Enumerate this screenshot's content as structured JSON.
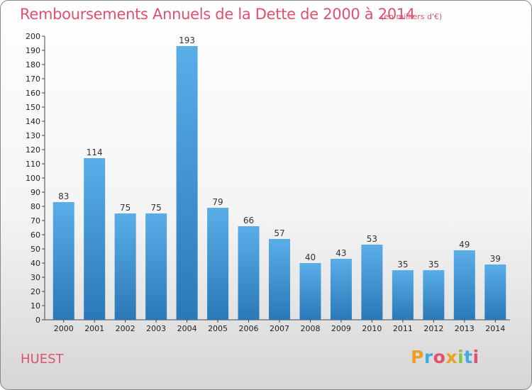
{
  "header": {
    "title": "Remboursements Annuels de la Dette de 2000 à 2014",
    "unit_note": "(en milliers d'€)"
  },
  "footer": {
    "commune": "HUEST",
    "logo_text": "Proxiti",
    "logo_colors": [
      "#f0a020",
      "#3fa9e0",
      "#e0506f",
      "#f0a020",
      "#8cc63f",
      "#3fa9e0",
      "#e0506f"
    ]
  },
  "colors": {
    "bar_top": "#5aaee8",
    "bar_bottom": "#2a78b8",
    "title": "#e0506f"
  },
  "chart_data": {
    "type": "bar",
    "categories": [
      "2000",
      "2001",
      "2002",
      "2003",
      "2004",
      "2005",
      "2006",
      "2007",
      "2008",
      "2009",
      "2010",
      "2011",
      "2012",
      "2013",
      "2014"
    ],
    "values": [
      83,
      114,
      75,
      75,
      193,
      79,
      66,
      57,
      40,
      43,
      53,
      35,
      35,
      49,
      39
    ],
    "title": "Remboursements Annuels de la Dette de 2000 à 2014",
    "xlabel": "",
    "ylabel": "",
    "ylim": [
      0,
      200
    ],
    "ytick_step": 10,
    "grid": false,
    "data_labels": true
  }
}
